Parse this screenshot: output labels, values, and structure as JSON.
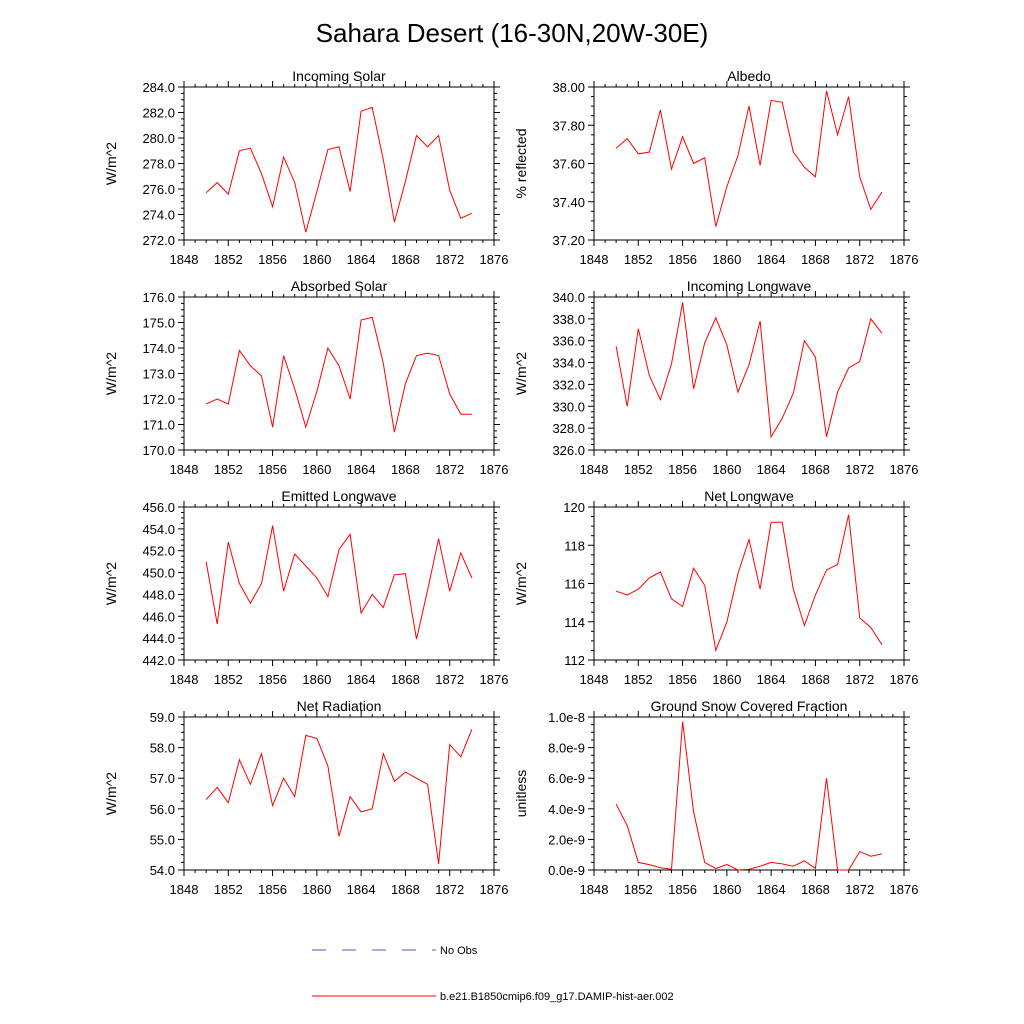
{
  "title": "Sahara Desert (16-30N,20W-30E)",
  "legend": {
    "no_obs_label": "No Obs",
    "model_label": "b.e21.B1850cmip6.f09_g17.DAMIP-hist-aer.002",
    "model_color": "#ff0000",
    "obs_color": "#5555cc"
  },
  "chart_data": [
    {
      "type": "line",
      "title": "Incoming Solar",
      "ylabel": "W/m^2",
      "xlim": [
        1848,
        1876
      ],
      "ylim": [
        272,
        284
      ],
      "xticks": [
        "1848",
        "1852",
        "1856",
        "1860",
        "1864",
        "1868",
        "1872",
        "1876"
      ],
      "yticks": [
        "272.0",
        "274.0",
        "276.0",
        "278.0",
        "280.0",
        "282.0",
        "284.0"
      ],
      "x": [
        1850,
        1851,
        1852,
        1853,
        1854,
        1855,
        1856,
        1857,
        1858,
        1859,
        1860,
        1861,
        1862,
        1863,
        1864,
        1865,
        1866,
        1867,
        1868,
        1869,
        1870,
        1871,
        1872,
        1873,
        1874
      ],
      "series": [
        {
          "color": "#ff0000",
          "values": [
            275.7,
            276.5,
            275.6,
            279.0,
            279.2,
            277.2,
            274.6,
            278.5,
            276.5,
            272.6,
            275.8,
            279.1,
            279.3,
            275.8,
            282.1,
            282.4,
            278.3,
            273.4,
            276.6,
            280.2,
            279.3,
            280.2,
            275.9,
            273.7,
            274.1
          ]
        }
      ]
    },
    {
      "type": "line",
      "title": "Albedo",
      "ylabel": "% reflected",
      "xlim": [
        1848,
        1876
      ],
      "ylim": [
        37.2,
        38.0
      ],
      "xticks": [
        "1848",
        "1852",
        "1856",
        "1860",
        "1864",
        "1868",
        "1872",
        "1876"
      ],
      "yticks": [
        "37.20",
        "37.40",
        "37.60",
        "37.80",
        "38.00"
      ],
      "x": [
        1850,
        1851,
        1852,
        1853,
        1854,
        1855,
        1856,
        1857,
        1858,
        1859,
        1860,
        1861,
        1862,
        1863,
        1864,
        1865,
        1866,
        1867,
        1868,
        1869,
        1870,
        1871,
        1872,
        1873,
        1874
      ],
      "series": [
        {
          "color": "#ff0000",
          "values": [
            37.68,
            37.73,
            37.65,
            37.66,
            37.88,
            37.57,
            37.74,
            37.6,
            37.63,
            37.27,
            37.48,
            37.64,
            37.9,
            37.59,
            37.93,
            37.92,
            37.66,
            37.58,
            37.53,
            37.98,
            37.75,
            37.95,
            37.53,
            37.36,
            37.45
          ]
        }
      ]
    },
    {
      "type": "line",
      "title": "Absorbed Solar",
      "ylabel": "W/m^2",
      "xlim": [
        1848,
        1876
      ],
      "ylim": [
        170,
        176
      ],
      "xticks": [
        "1848",
        "1852",
        "1856",
        "1860",
        "1864",
        "1868",
        "1872",
        "1876"
      ],
      "yticks": [
        "170.0",
        "171.0",
        "172.0",
        "173.0",
        "174.0",
        "175.0",
        "176.0"
      ],
      "x": [
        1850,
        1851,
        1852,
        1853,
        1854,
        1855,
        1856,
        1857,
        1858,
        1859,
        1860,
        1861,
        1862,
        1863,
        1864,
        1865,
        1866,
        1867,
        1868,
        1869,
        1870,
        1871,
        1872,
        1873,
        1874
      ],
      "series": [
        {
          "color": "#ff0000",
          "values": [
            171.8,
            172.0,
            171.8,
            173.9,
            173.3,
            172.9,
            170.9,
            173.7,
            172.4,
            170.9,
            172.3,
            174.0,
            173.3,
            172.0,
            175.1,
            175.2,
            173.4,
            170.7,
            172.6,
            173.7,
            173.8,
            173.7,
            172.2,
            171.4,
            171.4
          ]
        }
      ]
    },
    {
      "type": "line",
      "title": "Incoming Longwave",
      "ylabel": "W/m^2",
      "xlim": [
        1848,
        1876
      ],
      "ylim": [
        326,
        340
      ],
      "xticks": [
        "1848",
        "1852",
        "1856",
        "1860",
        "1864",
        "1868",
        "1872",
        "1876"
      ],
      "yticks": [
        "326.0",
        "328.0",
        "330.0",
        "332.0",
        "334.0",
        "336.0",
        "338.0",
        "340.0"
      ],
      "x": [
        1850,
        1851,
        1852,
        1853,
        1854,
        1855,
        1856,
        1857,
        1858,
        1859,
        1860,
        1861,
        1862,
        1863,
        1864,
        1865,
        1866,
        1867,
        1868,
        1869,
        1870,
        1871,
        1872,
        1873,
        1874
      ],
      "series": [
        {
          "color": "#ff0000",
          "values": [
            335.5,
            330.0,
            337.1,
            332.8,
            330.6,
            333.9,
            339.5,
            331.6,
            335.8,
            338.1,
            335.6,
            331.3,
            333.8,
            337.8,
            327.2,
            328.9,
            331.2,
            336.0,
            334.5,
            327.2,
            331.3,
            333.5,
            334.1,
            338.0,
            336.7
          ]
        }
      ]
    },
    {
      "type": "line",
      "title": "Emitted Longwave",
      "ylabel": "W/m^2",
      "xlim": [
        1848,
        1876
      ],
      "ylim": [
        442,
        456
      ],
      "xticks": [
        "1848",
        "1852",
        "1856",
        "1860",
        "1864",
        "1868",
        "1872",
        "1876"
      ],
      "yticks": [
        "442.0",
        "444.0",
        "446.0",
        "448.0",
        "450.0",
        "452.0",
        "454.0",
        "456.0"
      ],
      "x": [
        1850,
        1851,
        1852,
        1853,
        1854,
        1855,
        1856,
        1857,
        1858,
        1859,
        1860,
        1861,
        1862,
        1863,
        1864,
        1865,
        1866,
        1867,
        1868,
        1869,
        1870,
        1871,
        1872,
        1873,
        1874
      ],
      "series": [
        {
          "color": "#ff0000",
          "values": [
            451.0,
            445.3,
            452.8,
            449.0,
            447.2,
            449.0,
            454.3,
            448.3,
            451.7,
            450.6,
            449.5,
            447.8,
            452.1,
            453.5,
            446.3,
            448.0,
            446.8,
            449.8,
            449.9,
            443.9,
            448.4,
            453.1,
            448.3,
            451.8,
            449.5
          ]
        }
      ]
    },
    {
      "type": "line",
      "title": "Net Longwave",
      "ylabel": "W/m^2",
      "xlim": [
        1848,
        1876
      ],
      "ylim": [
        112,
        120
      ],
      "xticks": [
        "1848",
        "1852",
        "1856",
        "1860",
        "1864",
        "1868",
        "1872",
        "1876"
      ],
      "yticks": [
        "112",
        "114",
        "116",
        "118",
        "120"
      ],
      "x": [
        1850,
        1851,
        1852,
        1853,
        1854,
        1855,
        1856,
        1857,
        1858,
        1859,
        1860,
        1861,
        1862,
        1863,
        1864,
        1865,
        1866,
        1867,
        1868,
        1869,
        1870,
        1871,
        1872,
        1873,
        1874
      ],
      "series": [
        {
          "color": "#ff0000",
          "values": [
            115.6,
            115.4,
            115.7,
            116.3,
            116.6,
            115.2,
            114.8,
            116.8,
            115.9,
            112.5,
            114.0,
            116.5,
            118.3,
            115.7,
            119.2,
            119.2,
            115.7,
            113.8,
            115.4,
            116.7,
            117.0,
            119.6,
            114.2,
            113.7,
            112.8
          ]
        }
      ]
    },
    {
      "type": "line",
      "title": "Net Radiation",
      "ylabel": "W/m^2",
      "xlim": [
        1848,
        1876
      ],
      "ylim": [
        54,
        59
      ],
      "xticks": [
        "1848",
        "1852",
        "1856",
        "1860",
        "1864",
        "1868",
        "1872",
        "1876"
      ],
      "yticks": [
        "54.0",
        "55.0",
        "56.0",
        "57.0",
        "58.0",
        "59.0"
      ],
      "x": [
        1850,
        1851,
        1852,
        1853,
        1854,
        1855,
        1856,
        1857,
        1858,
        1859,
        1860,
        1861,
        1862,
        1863,
        1864,
        1865,
        1866,
        1867,
        1868,
        1869,
        1870,
        1871,
        1872,
        1873,
        1874
      ],
      "series": [
        {
          "color": "#ff0000",
          "values": [
            56.3,
            56.7,
            56.2,
            57.6,
            56.8,
            57.8,
            56.1,
            57.0,
            56.4,
            58.4,
            58.3,
            57.4,
            55.1,
            56.4,
            55.9,
            56.0,
            57.8,
            56.9,
            57.2,
            57.0,
            56.8,
            54.2,
            58.1,
            57.7,
            58.6
          ]
        }
      ]
    },
    {
      "type": "line",
      "title": "Ground Snow Covered Fraction",
      "ylabel": "unitless",
      "xlim": [
        1848,
        1876
      ],
      "ylim": [
        0,
        1e-08
      ],
      "xticks": [
        "1848",
        "1852",
        "1856",
        "1860",
        "1864",
        "1868",
        "1872",
        "1876"
      ],
      "yticks": [
        "0.0e-9",
        "2.0e-9",
        "4.0e-9",
        "6.0e-9",
        "8.0e-9",
        "1.0e-8"
      ],
      "x": [
        1850,
        1851,
        1852,
        1853,
        1854,
        1855,
        1856,
        1857,
        1858,
        1859,
        1860,
        1861,
        1862,
        1863,
        1864,
        1865,
        1866,
        1867,
        1868,
        1869,
        1870,
        1871,
        1872,
        1873,
        1874
      ],
      "series": [
        {
          "color": "#ff0000",
          "values": [
            4.3e-09,
            2.9e-09,
            5e-10,
            3.5e-10,
            1.5e-10,
            5e-11,
            9.7e-09,
            3.8e-09,
            5e-10,
            1e-10,
            3.5e-10,
            0.0,
            5e-11,
            2.5e-10,
            5e-10,
            4e-10,
            2.5e-10,
            6e-10,
            1e-10,
            6e-09,
            0.0,
            0.0,
            1.2e-09,
            9e-10,
            1.05e-09
          ]
        }
      ]
    }
  ]
}
